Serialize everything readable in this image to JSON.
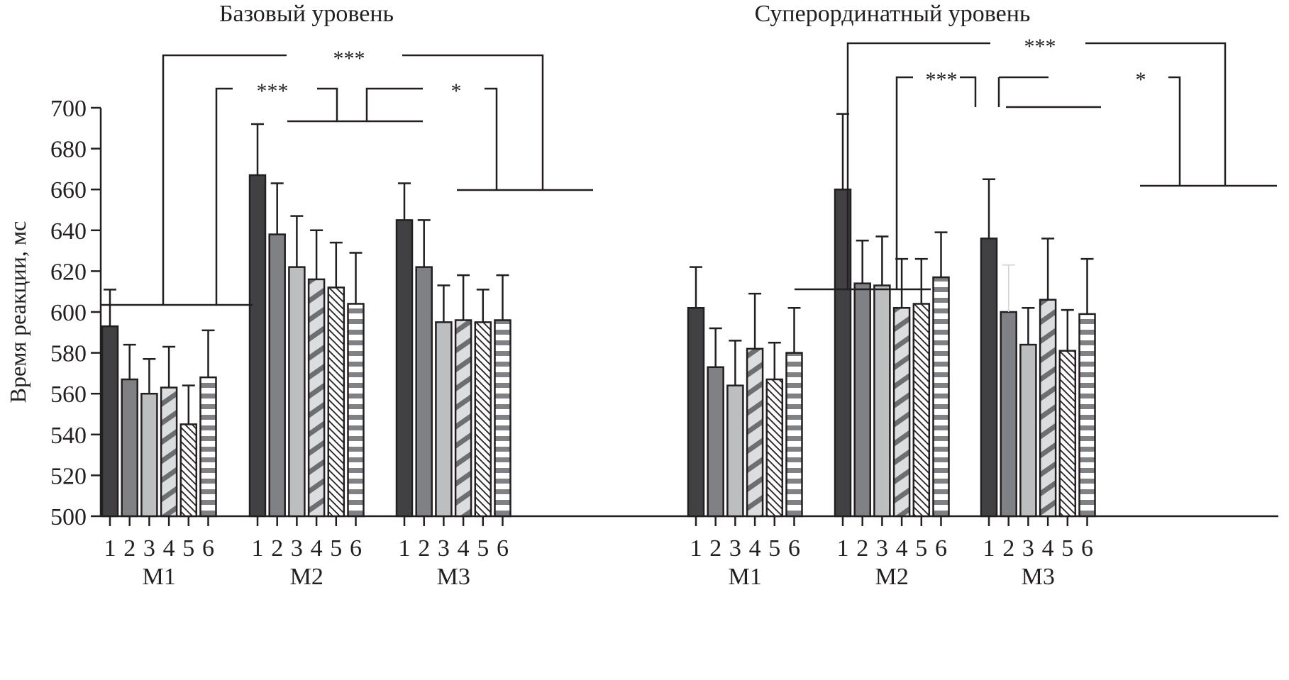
{
  "chart_data": {
    "type": "bar",
    "ylabel": "Время реакции, мс",
    "ylim": [
      500,
      700
    ],
    "yticks": [
      500,
      520,
      540,
      560,
      580,
      600,
      620,
      640,
      660,
      680,
      700
    ],
    "categories": [
      "1",
      "2",
      "3",
      "4",
      "5",
      "6"
    ],
    "grid": false,
    "legend": null,
    "condition_styles": [
      {
        "name": "1",
        "fill": "#414042",
        "pattern": "solid"
      },
      {
        "name": "2",
        "fill": "#808184",
        "pattern": "solid"
      },
      {
        "name": "3",
        "fill": "#bcbec0",
        "pattern": "solid"
      },
      {
        "name": "4",
        "fill": "#dcdddf",
        "pattern": "diagonal-thick",
        "stripe": "#6d6e71"
      },
      {
        "name": "5",
        "fill": "#ffffff",
        "pattern": "diagonal-thin",
        "stripe": "#231f20"
      },
      {
        "name": "6",
        "fill": "#ffffff",
        "pattern": "horizontal",
        "stripe": "#808184"
      }
    ],
    "panels": [
      {
        "title": "Базовый уровень",
        "groups": [
          {
            "name": "M1",
            "values": [
              593,
              567,
              560,
              563,
              545,
              568
            ],
            "error_upper": [
              611,
              584,
              577,
              583,
              564,
              591
            ]
          },
          {
            "name": "M2",
            "values": [
              667,
              638,
              622,
              616,
              612,
              604
            ],
            "error_upper": [
              692,
              663,
              647,
              640,
              634,
              629
            ]
          },
          {
            "name": "M3",
            "values": [
              645,
              622,
              595,
              596,
              595,
              596
            ],
            "error_upper": [
              663,
              645,
              613,
              618,
              611,
              618
            ]
          }
        ],
        "significance": [
          {
            "between": [
              "M1",
              "M3"
            ],
            "label": "***"
          },
          {
            "between": [
              "M1",
              "M2"
            ],
            "label": "***"
          },
          {
            "between": [
              "M2",
              "M3"
            ],
            "label": "*"
          }
        ]
      },
      {
        "title": "Суперординатный уровень",
        "groups": [
          {
            "name": "M1",
            "values": [
              602,
              573,
              564,
              582,
              567,
              580
            ],
            "error_upper": [
              622,
              592,
              586,
              609,
              585,
              602
            ]
          },
          {
            "name": "M2",
            "values": [
              660,
              614,
              613,
              602,
              604,
              617
            ],
            "error_upper": [
              697,
              635,
              637,
              626,
              626,
              639
            ]
          },
          {
            "name": "M3",
            "values": [
              636,
              600,
              584,
              606,
              581,
              599
            ],
            "error_upper": [
              665,
              623,
              602,
              636,
              601,
              626
            ]
          }
        ],
        "significance": [
          {
            "between": [
              "M1",
              "M3"
            ],
            "label": "***"
          },
          {
            "between": [
              "M1",
              "M2"
            ],
            "label": "***"
          },
          {
            "between": [
              "M2",
              "M3"
            ],
            "label": "*"
          }
        ]
      }
    ]
  }
}
